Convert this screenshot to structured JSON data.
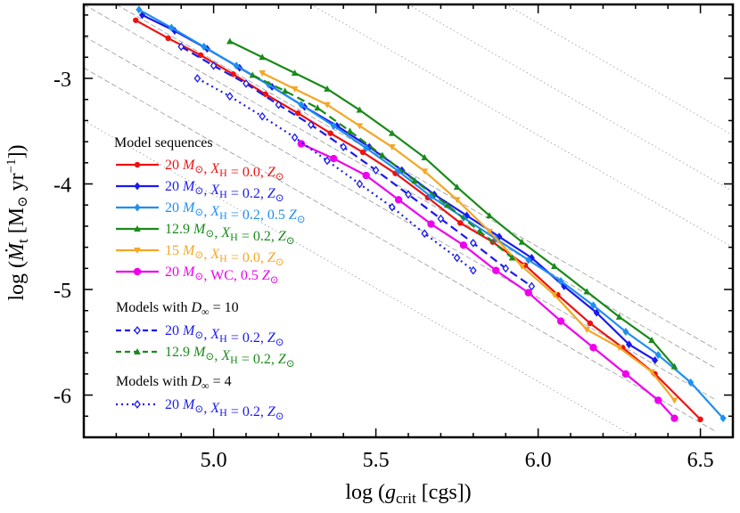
{
  "chart_data": {
    "type": "line",
    "xlabel_main": "log (",
    "xlabel_var": "g",
    "xlabel_sub": "crit",
    "xlabel_unit": " [cgs])",
    "ylabel_main": "log (",
    "ylabel_var": "Ṁ",
    "ylabel_sub": "t",
    "ylabel_unit": " [M",
    "ylabel_sun": "⊙",
    "ylabel_yr": " yr",
    "ylabel_exp": "−1",
    "ylabel_close": "])",
    "xlim": [
      4.6,
      6.6
    ],
    "ylim": [
      -6.4,
      -2.3
    ],
    "xticks": [
      5.0,
      5.5,
      6.0,
      6.5
    ],
    "xtick_labels": [
      "5.0",
      "5.5",
      "6.0",
      "6.5"
    ],
    "yticks": [
      -3,
      -4,
      -5,
      -6
    ],
    "ytick_labels": [
      "-3",
      "-4",
      "-5",
      "-6"
    ],
    "legend": {
      "heading1": "Model sequences",
      "heading2": "Models with D∞ = 10",
      "heading3": "Models with D∞ = 4"
    },
    "series": [
      {
        "name": "20 M⊙, XH = 0.0, Z⊙",
        "color": "#ee1111",
        "marker": "circle",
        "dash": "solid",
        "x": [
          4.76,
          4.86,
          4.96,
          5.06,
          5.16,
          5.26,
          5.36,
          5.46,
          5.56,
          5.66,
          5.76,
          5.86,
          5.96,
          6.06,
          6.16,
          6.26,
          6.36,
          6.5
        ],
        "y": [
          -2.45,
          -2.62,
          -2.78,
          -2.96,
          -3.15,
          -3.33,
          -3.52,
          -3.7,
          -3.9,
          -4.13,
          -4.37,
          -4.55,
          -4.77,
          -5.05,
          -5.32,
          -5.55,
          -5.8,
          -6.23
        ]
      },
      {
        "name": "20 M⊙, XH = 0.2, Z⊙",
        "color": "#1a1aee",
        "marker": "diamond",
        "dash": "solid",
        "x": [
          4.78,
          4.88,
          4.98,
          5.08,
          5.18,
          5.28,
          5.38,
          5.48,
          5.58,
          5.68,
          5.78,
          5.88,
          5.98,
          6.08,
          6.18,
          6.28,
          6.36
        ],
        "y": [
          -2.4,
          -2.55,
          -2.72,
          -2.9,
          -3.08,
          -3.27,
          -3.45,
          -3.65,
          -3.87,
          -4.1,
          -4.3,
          -4.5,
          -4.7,
          -4.97,
          -5.22,
          -5.52,
          -5.67
        ]
      },
      {
        "name": "20 M⊙, XH = 0.2, 0.5 Z⊙",
        "color": "#1f8ff0",
        "marker": "diamond",
        "dash": "solid",
        "x": [
          4.77,
          4.87,
          4.97,
          5.07,
          5.17,
          5.27,
          5.37,
          5.47,
          5.57,
          5.67,
          5.77,
          5.87,
          5.97,
          6.07,
          6.17,
          6.27,
          6.37,
          6.47,
          6.57
        ],
        "y": [
          -2.35,
          -2.52,
          -2.7,
          -2.88,
          -3.06,
          -3.25,
          -3.45,
          -3.66,
          -3.88,
          -4.12,
          -4.32,
          -4.52,
          -4.72,
          -4.92,
          -5.15,
          -5.4,
          -5.62,
          -5.88,
          -6.22
        ]
      },
      {
        "name": "12.9 M⊙, XH = 0.2, Z⊙",
        "color": "#1a8a1a",
        "marker": "triangle",
        "dash": "solid",
        "x": [
          5.05,
          5.15,
          5.25,
          5.35,
          5.45,
          5.55,
          5.65,
          5.75,
          5.85,
          5.95,
          6.05,
          6.15,
          6.25,
          6.35,
          6.42
        ],
        "y": [
          -2.65,
          -2.8,
          -2.95,
          -3.1,
          -3.3,
          -3.52,
          -3.75,
          -4.03,
          -4.3,
          -4.55,
          -4.78,
          -5.02,
          -5.26,
          -5.48,
          -5.73
        ]
      },
      {
        "name": "15 M⊙, XH = 0.0, Z⊙",
        "color": "#f5a623",
        "marker": "triangle-down",
        "dash": "solid",
        "x": [
          5.15,
          5.25,
          5.35,
          5.45,
          5.55,
          5.65,
          5.75,
          5.85,
          5.95,
          6.05,
          6.15,
          6.25,
          6.35,
          6.42
        ],
        "y": [
          -2.95,
          -3.1,
          -3.25,
          -3.45,
          -3.65,
          -3.88,
          -4.15,
          -4.45,
          -4.78,
          -5.05,
          -5.38,
          -5.55,
          -5.78,
          -6.05
        ]
      },
      {
        "name": "20 M⊙, WC, 0.5 Z⊙",
        "color": "#ee00ee",
        "marker": "circle-big",
        "dash": "solid",
        "x": [
          5.27,
          5.37,
          5.47,
          5.57,
          5.67,
          5.77,
          5.87,
          5.97,
          6.07,
          6.17,
          6.27,
          6.37,
          6.42
        ],
        "y": [
          -3.62,
          -3.76,
          -3.92,
          -4.15,
          -4.38,
          -4.58,
          -4.82,
          -5.03,
          -5.3,
          -5.55,
          -5.8,
          -6.05,
          -6.22
        ]
      },
      {
        "name": "20 M⊙, XH = 0.2, Z⊙",
        "color": "#1a1aee",
        "marker": "open-diamond",
        "dash": "dashed",
        "x": [
          4.9,
          5.0,
          5.1,
          5.2,
          5.3,
          5.4,
          5.5,
          5.6,
          5.7,
          5.8,
          5.9,
          5.98
        ],
        "y": [
          -2.7,
          -2.88,
          -3.05,
          -3.25,
          -3.44,
          -3.65,
          -3.87,
          -4.1,
          -4.33,
          -4.56,
          -4.8,
          -4.97
        ]
      },
      {
        "name": "12.9 M⊙, XH = 0.2, Z⊙",
        "color": "#1a8a1a",
        "marker": "triangle",
        "dash": "dashed",
        "x": [
          5.12,
          5.22,
          5.32,
          5.42,
          5.52,
          5.62,
          5.72,
          5.82,
          5.92
        ],
        "y": [
          -2.97,
          -3.12,
          -3.28,
          -3.5,
          -3.73,
          -3.97,
          -4.2,
          -4.45,
          -4.7
        ]
      },
      {
        "name": "20 M⊙, XH = 0.2, Z⊙",
        "color": "#1a1aee",
        "marker": "open-diamond",
        "dash": "dotted",
        "x": [
          4.95,
          5.05,
          5.15,
          5.25,
          5.35,
          5.45,
          5.55,
          5.65,
          5.75,
          5.8
        ],
        "y": [
          -3.0,
          -3.17,
          -3.36,
          -3.56,
          -3.78,
          -4.0,
          -4.22,
          -4.47,
          -4.7,
          -4.82
        ]
      }
    ],
    "guides": [
      {
        "style": "dashed",
        "x": [
          4.6,
          6.55
        ],
        "y": [
          -2.9,
          -6.35
        ]
      },
      {
        "style": "dashed",
        "x": [
          4.6,
          6.55
        ],
        "y": [
          -2.6,
          -6.05
        ]
      },
      {
        "style": "dashed",
        "x": [
          4.6,
          6.55
        ],
        "y": [
          -2.3,
          -5.75
        ]
      },
      {
        "style": "dashed",
        "x": [
          4.7,
          6.55
        ],
        "y": [
          -2.3,
          -5.57
        ]
      },
      {
        "style": "dotted",
        "x": [
          4.6,
          6.3
        ],
        "y": [
          -3.4,
          -6.4
        ]
      },
      {
        "style": "dotted",
        "x": [
          5.3,
          6.6
        ],
        "y": [
          -2.3,
          -4.6
        ]
      },
      {
        "style": "dotted",
        "x": [
          5.6,
          6.6
        ],
        "y": [
          -2.3,
          -4.07
        ]
      },
      {
        "style": "dotted",
        "x": [
          5.9,
          6.6
        ],
        "y": [
          -2.3,
          -3.54
        ]
      }
    ]
  }
}
